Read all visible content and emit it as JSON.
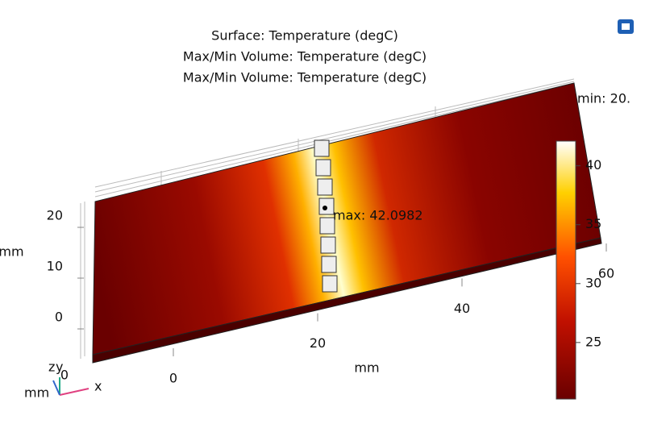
{
  "chart_data": {
    "type": "surface3d",
    "title": [
      "Surface: Temperature (degC)",
      "Max/Min Volume: Temperature (degC)",
      "Max/Min Volume: Temperature (degC)"
    ],
    "max_label": "max: 42.0982",
    "min_label": "min: 20.",
    "xlabel": "mm",
    "xticks": [
      0,
      20,
      40,
      60
    ],
    "zlabel": "mm",
    "zticks": [
      0,
      10,
      20
    ],
    "yticks": [
      0
    ],
    "triad": {
      "z": "z",
      "y": "y",
      "x": "x",
      "unit": "mm"
    },
    "colorbar": {
      "clim": [
        20.2,
        42.0982
      ],
      "ticks": [
        25,
        30,
        35,
        40
      ]
    }
  }
}
